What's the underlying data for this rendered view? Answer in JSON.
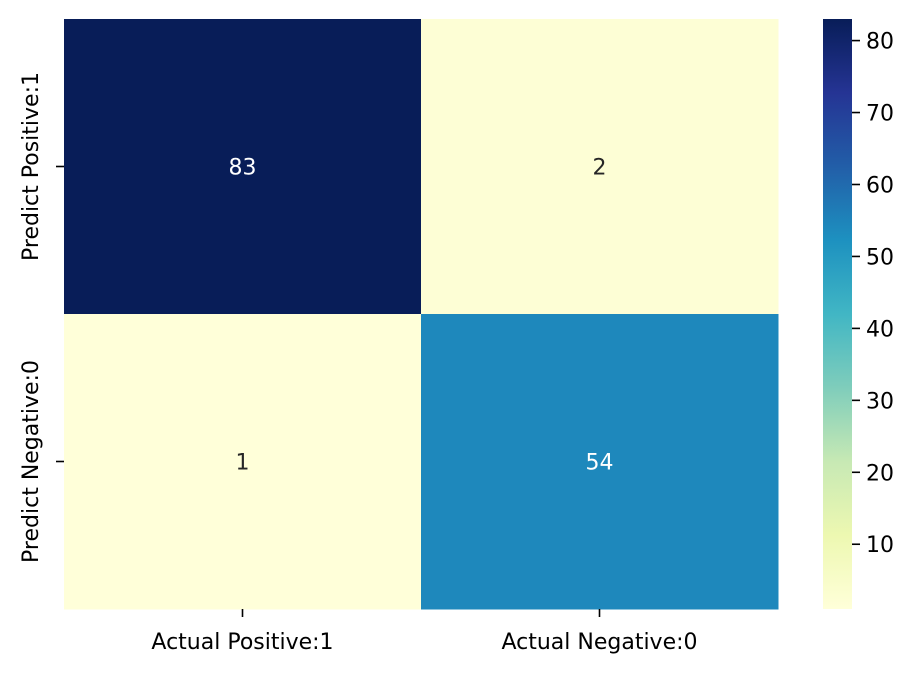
{
  "chart_data": {
    "type": "heatmap",
    "title": "",
    "xlabel": "",
    "ylabel": "",
    "x_categories": [
      "Actual Positive:1",
      "Actual Negative:0"
    ],
    "y_categories": [
      "Predict Positive:1",
      "Predict Negative:0"
    ],
    "values": [
      [
        83,
        2
      ],
      [
        1,
        54
      ]
    ],
    "annotations": true,
    "colormap": "YlGnBu",
    "colorbar": {
      "vmin": 1,
      "vmax": 83,
      "ticks": [
        10,
        20,
        30,
        40,
        50,
        60,
        70,
        80
      ],
      "tick_labels": [
        "10",
        "20",
        "30",
        "40",
        "50",
        "60",
        "70",
        "80"
      ],
      "position": "right"
    },
    "grid": false
  }
}
